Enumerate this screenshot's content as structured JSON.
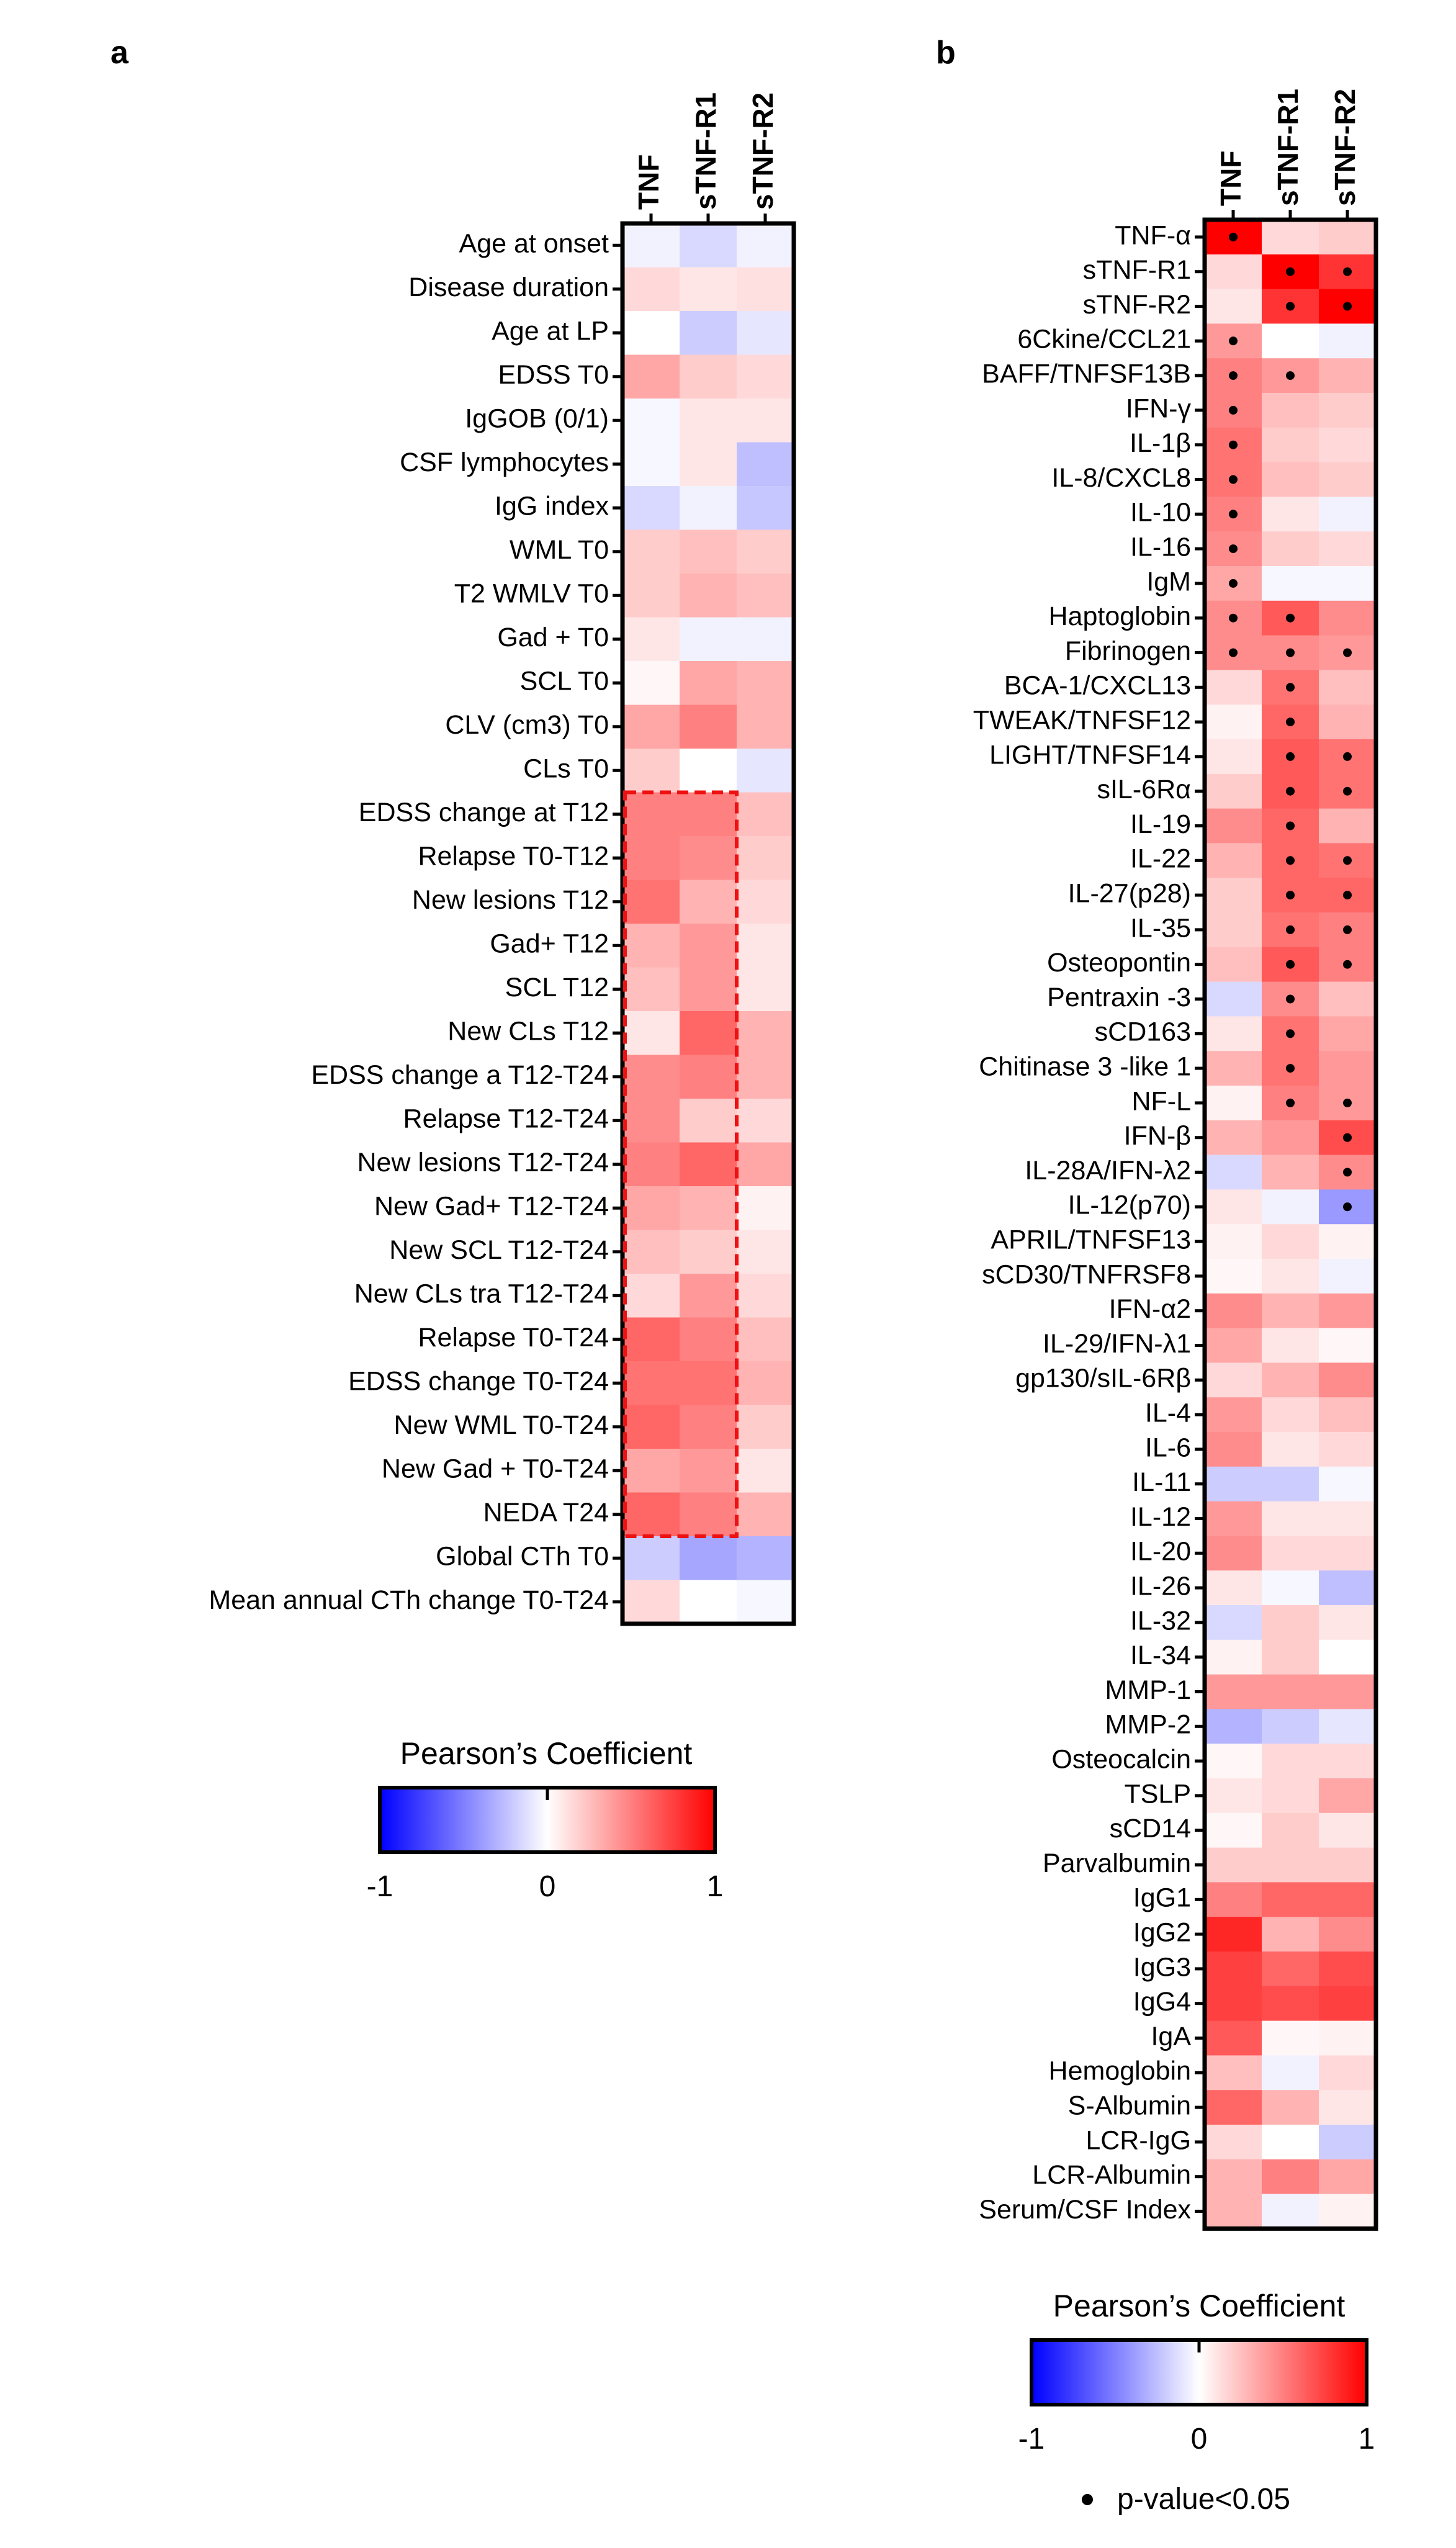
{
  "chart_data": [
    {
      "type": "heatmap",
      "panel": "a",
      "columns": [
        "TNF",
        "sTNF-R1",
        "sTNF-R2"
      ],
      "rows": [
        "Age at onset",
        "Disease duration",
        "Age at LP",
        "EDSS T0",
        "IgGOB (0/1)",
        "CSF lymphocytes",
        "IgG index",
        "WML T0",
        "T2 WMLV T0",
        "Gad + T0",
        "SCL T0",
        "CLV (cm3) T0",
        "CLs T0",
        "EDSS change at T12",
        "Relapse T0-T12",
        "New lesions T12",
        "Gad+ T12",
        "SCL T12",
        "New CLs T12",
        "EDSS change a T12-T24",
        "Relapse T12-T24",
        "New lesions T12-T24",
        "New Gad+ T12-T24",
        "New SCL T12-T24",
        "New CLs tra T12-T24",
        "Relapse T0-T24",
        "EDSS change T0-T24",
        "New WML T0-T24",
        "New Gad + T0-T24",
        "NEDA T24",
        "Global CTh T0",
        "Mean annual CTh change T0-T24"
      ],
      "values": [
        [
          -0.05,
          -0.15,
          -0.05
        ],
        [
          0.15,
          0.1,
          0.12
        ],
        [
          0.0,
          -0.2,
          -0.1
        ],
        [
          0.35,
          0.2,
          0.15
        ],
        [
          -0.03,
          0.1,
          0.1
        ],
        [
          -0.03,
          0.1,
          -0.25
        ],
        [
          -0.15,
          -0.05,
          -0.22
        ],
        [
          0.2,
          0.25,
          0.2
        ],
        [
          0.2,
          0.3,
          0.25
        ],
        [
          0.1,
          -0.05,
          -0.05
        ],
        [
          0.03,
          0.35,
          0.3
        ],
        [
          0.35,
          0.5,
          0.3
        ],
        [
          0.2,
          0.0,
          -0.1
        ],
        [
          0.5,
          0.5,
          0.25
        ],
        [
          0.5,
          0.45,
          0.2
        ],
        [
          0.55,
          0.3,
          0.15
        ],
        [
          0.3,
          0.4,
          0.1
        ],
        [
          0.25,
          0.4,
          0.1
        ],
        [
          0.1,
          0.6,
          0.3
        ],
        [
          0.45,
          0.5,
          0.3
        ],
        [
          0.45,
          0.2,
          0.15
        ],
        [
          0.5,
          0.6,
          0.35
        ],
        [
          0.35,
          0.3,
          0.05
        ],
        [
          0.25,
          0.2,
          0.1
        ],
        [
          0.15,
          0.4,
          0.15
        ],
        [
          0.6,
          0.5,
          0.25
        ],
        [
          0.55,
          0.55,
          0.3
        ],
        [
          0.6,
          0.5,
          0.2
        ],
        [
          0.35,
          0.4,
          0.1
        ],
        [
          0.6,
          0.5,
          0.3
        ],
        [
          -0.2,
          -0.35,
          -0.3
        ],
        [
          0.15,
          0.0,
          -0.03
        ]
      ],
      "significant": [],
      "highlight": {
        "from_row": "EDSS change at T12",
        "to_row": "NEDA T24",
        "columns": [
          "TNF",
          "sTNF-R1"
        ],
        "style": "red dashed box"
      },
      "legend": {
        "title": "Pearson’s Coefficient",
        "ticks": [
          "-1",
          "0",
          "1"
        ],
        "range": [
          -1,
          1
        ],
        "colors": {
          "low": "#0000ff",
          "mid": "#ffffff",
          "high": "#ff0000"
        }
      }
    },
    {
      "type": "heatmap",
      "panel": "b",
      "columns": [
        "TNF",
        "sTNF-R1",
        "sTNF-R2"
      ],
      "rows": [
        "TNF-α",
        "sTNF-R1",
        "sTNF-R2",
        "6Ckine/CCL21",
        "BAFF/TNFSF13B",
        "IFN-γ",
        "IL-1β",
        "IL-8/CXCL8",
        "IL-10",
        "IL-16",
        "IgM",
        "Haptoglobin",
        "Fibrinogen",
        "BCA-1/CXCL13",
        "TWEAK/TNFSF12",
        "LIGHT/TNFSF14",
        "sIL-6Rα",
        "IL-19",
        "IL-22",
        "IL-27(p28)",
        "IL-35",
        "Osteopontin",
        "Pentraxin -3",
        "sCD163",
        "Chitinase 3 -like 1",
        "NF-L",
        "IFN-β",
        "IL-28A/IFN-λ2",
        "IL-12(p70)",
        "APRIL/TNFSF13",
        "sCD30/TNFRSF8",
        "IFN-α2",
        "IL-29/IFN-λ1",
        "gp130/sIL-6Rβ",
        "IL-4",
        "IL-6",
        "IL-11",
        "IL-12",
        "IL-20",
        "IL-26",
        "IL-32",
        "IL-34",
        "MMP-1",
        "MMP-2",
        "Osteocalcin",
        "TSLP",
        "sCD14",
        "Parvalbumin",
        "IgG1",
        "IgG2",
        "IgG3",
        "IgG4",
        "IgA",
        "Hemoglobin",
        "S-Albumin",
        "LCR-IgG",
        "LCR-Albumin",
        "Serum/CSF Index"
      ],
      "values": [
        [
          1.0,
          0.15,
          0.2
        ],
        [
          0.15,
          1.0,
          0.8
        ],
        [
          0.1,
          0.8,
          1.0
        ],
        [
          0.4,
          0.0,
          -0.05
        ],
        [
          0.5,
          0.4,
          0.3
        ],
        [
          0.5,
          0.25,
          0.2
        ],
        [
          0.55,
          0.2,
          0.15
        ],
        [
          0.55,
          0.25,
          0.2
        ],
        [
          0.5,
          0.1,
          -0.05
        ],
        [
          0.45,
          0.2,
          0.15
        ],
        [
          0.35,
          -0.03,
          -0.03
        ],
        [
          0.45,
          0.65,
          0.45
        ],
        [
          0.45,
          0.45,
          0.4
        ],
        [
          0.15,
          0.55,
          0.25
        ],
        [
          0.05,
          0.6,
          0.3
        ],
        [
          0.1,
          0.65,
          0.55
        ],
        [
          0.2,
          0.65,
          0.55
        ],
        [
          0.45,
          0.6,
          0.3
        ],
        [
          0.3,
          0.6,
          0.55
        ],
        [
          0.2,
          0.6,
          0.6
        ],
        [
          0.2,
          0.55,
          0.5
        ],
        [
          0.25,
          0.65,
          0.5
        ],
        [
          -0.15,
          0.45,
          0.25
        ],
        [
          0.1,
          0.55,
          0.35
        ],
        [
          0.3,
          0.55,
          0.4
        ],
        [
          0.05,
          0.5,
          0.4
        ],
        [
          0.3,
          0.4,
          0.7
        ],
        [
          -0.15,
          0.3,
          0.45
        ],
        [
          0.1,
          -0.05,
          -0.4
        ],
        [
          0.05,
          0.15,
          0.05
        ],
        [
          0.03,
          0.1,
          -0.05
        ],
        [
          0.45,
          0.3,
          0.4
        ],
        [
          0.35,
          0.1,
          0.03
        ],
        [
          0.15,
          0.3,
          0.45
        ],
        [
          0.4,
          0.15,
          0.25
        ],
        [
          0.45,
          0.1,
          0.15
        ],
        [
          -0.2,
          -0.2,
          -0.03
        ],
        [
          0.4,
          0.1,
          0.1
        ],
        [
          0.45,
          0.15,
          0.15
        ],
        [
          0.1,
          -0.03,
          -0.25
        ],
        [
          -0.15,
          0.2,
          0.1
        ],
        [
          0.05,
          0.2,
          0.0
        ],
        [
          0.4,
          0.4,
          0.4
        ],
        [
          -0.3,
          -0.2,
          -0.1
        ],
        [
          0.03,
          0.15,
          0.15
        ],
        [
          0.1,
          0.15,
          0.35
        ],
        [
          0.03,
          0.2,
          0.1
        ],
        [
          0.2,
          0.2,
          0.2
        ],
        [
          0.5,
          0.6,
          0.6
        ],
        [
          0.85,
          0.3,
          0.45
        ],
        [
          0.75,
          0.6,
          0.7
        ],
        [
          0.75,
          0.7,
          0.75
        ],
        [
          0.65,
          0.03,
          0.05
        ],
        [
          0.25,
          -0.05,
          0.15
        ],
        [
          0.6,
          0.3,
          0.1
        ],
        [
          0.15,
          0.0,
          -0.2
        ],
        [
          0.3,
          0.5,
          0.35
        ],
        [
          0.3,
          -0.05,
          0.05
        ]
      ],
      "significant": [
        [
          0,
          0
        ],
        [
          1,
          1
        ],
        [
          1,
          2
        ],
        [
          2,
          1
        ],
        [
          2,
          2
        ],
        [
          3,
          0
        ],
        [
          4,
          0
        ],
        [
          4,
          1
        ],
        [
          5,
          0
        ],
        [
          6,
          0
        ],
        [
          7,
          0
        ],
        [
          8,
          0
        ],
        [
          9,
          0
        ],
        [
          10,
          0
        ],
        [
          11,
          0
        ],
        [
          11,
          1
        ],
        [
          12,
          0
        ],
        [
          12,
          1
        ],
        [
          12,
          2
        ],
        [
          13,
          1
        ],
        [
          14,
          1
        ],
        [
          15,
          1
        ],
        [
          15,
          2
        ],
        [
          16,
          1
        ],
        [
          16,
          2
        ],
        [
          17,
          1
        ],
        [
          18,
          1
        ],
        [
          18,
          2
        ],
        [
          19,
          1
        ],
        [
          19,
          2
        ],
        [
          20,
          1
        ],
        [
          20,
          2
        ],
        [
          21,
          1
        ],
        [
          21,
          2
        ],
        [
          22,
          1
        ],
        [
          23,
          1
        ],
        [
          24,
          1
        ],
        [
          25,
          1
        ],
        [
          25,
          2
        ],
        [
          26,
          2
        ],
        [
          27,
          2
        ],
        [
          28,
          2
        ]
      ],
      "legend": {
        "title": "Pearson’s Coefficient",
        "ticks": [
          "-1",
          "0",
          "1"
        ],
        "range": [
          -1,
          1
        ],
        "colors": {
          "low": "#0000ff",
          "mid": "#ffffff",
          "high": "#ff0000"
        },
        "significance_note": "p-value<0.05"
      }
    }
  ]
}
